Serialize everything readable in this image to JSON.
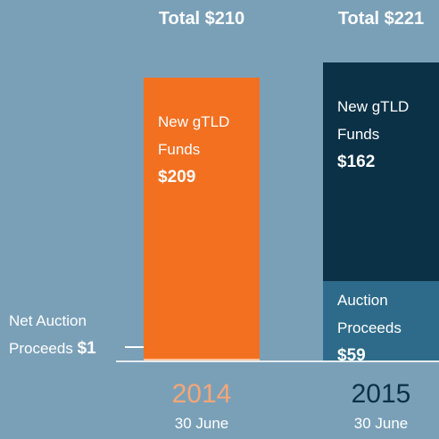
{
  "chart_data": {
    "type": "stacked_bar",
    "categories": [
      "2014",
      "2015"
    ],
    "category_sublabels": [
      "30 June",
      "30 June"
    ],
    "category_colors": [
      "#f5a676",
      "#0b3147"
    ],
    "totals": [
      210,
      221
    ],
    "total_labels": [
      "Total $210",
      "Total $221"
    ],
    "series": [
      {
        "name": "New gTLD Funds",
        "labels": [
          "New gTLD Funds",
          "New gTLD Funds"
        ],
        "values": [
          209,
          162
        ],
        "value_labels": [
          "$209",
          "$162"
        ],
        "colors": [
          "#f37021",
          "#0b3147"
        ]
      },
      {
        "name": "Auction Proceeds",
        "labels": [
          "Net Auction Proceeds",
          "Auction Proceeds"
        ],
        "values": [
          1,
          59
        ],
        "value_labels": [
          "$1",
          "$59"
        ],
        "colors": [
          "#fcc29a",
          "#2e6b8a"
        ]
      }
    ]
  }
}
